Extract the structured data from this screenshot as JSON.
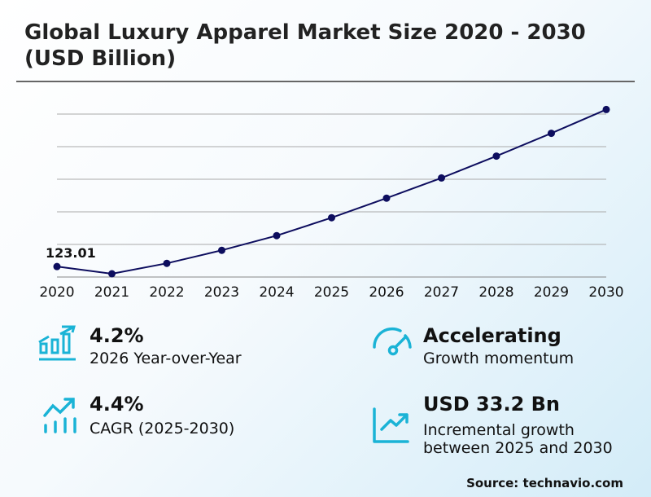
{
  "title": "Global Luxury Apparel Market Size 2020 - 2030 (USD Billion)",
  "chart_data": {
    "type": "line",
    "title": "Global Luxury Apparel Market Size 2020 - 2030 (USD Billion)",
    "categories": [
      "2020",
      "2021",
      "2022",
      "2023",
      "2024",
      "2025",
      "2026",
      "2027",
      "2028",
      "2029",
      "2030"
    ],
    "series": [
      {
        "values": [
          123.01,
          120.8,
          124.0,
          128.0,
          132.5,
          138.0,
          144.0,
          150.2,
          156.9,
          163.9,
          171.2
        ]
      }
    ],
    "data_labels": [
      {
        "index": 0,
        "text": "123.01"
      }
    ],
    "ylim": [
      119.8,
      169.8
    ],
    "grid": true,
    "y_tick_labels_shown": false,
    "line_color": "#0d0d5e"
  },
  "kpis": [
    {
      "icon": "bar-chart-growth-icon",
      "value": "4.2%",
      "desc": "2026 Year-over-Year"
    },
    {
      "icon": "speedometer-icon",
      "value": "Accelerating",
      "desc": "Growth momentum"
    },
    {
      "icon": "trend-bars-arrow-icon",
      "value": "4.4%",
      "desc": "CAGR (2025-2030)"
    },
    {
      "icon": "line-chart-arrow-icon",
      "value": "USD 33.2 Bn",
      "desc_lines": [
        "Incremental growth",
        "between 2025 and 2030"
      ]
    }
  ],
  "accent_color": "#1ab3d6",
  "source": "Source: technavio.com"
}
